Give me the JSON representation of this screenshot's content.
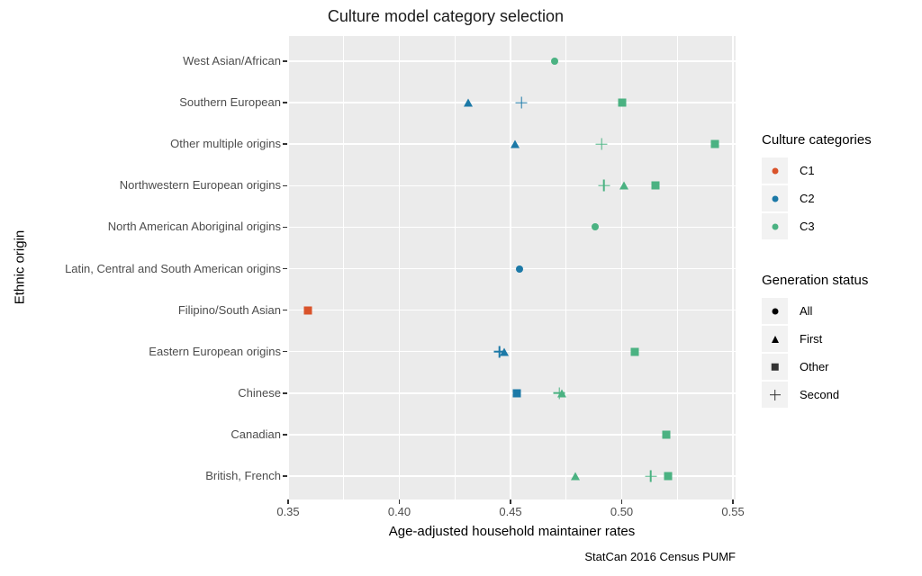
{
  "title": "Culture model category selection",
  "caption": "StatCan 2016 Census PUMF",
  "chart_data": {
    "type": "scatter",
    "title": "Culture model category selection",
    "xlabel": "Age-adjusted household maintainer rates",
    "ylabel": "Ethnic origin",
    "caption": "StatCan 2016 Census PUMF",
    "xlim": [
      0.35,
      0.5512
    ],
    "x_ticks": [
      0.35,
      0.4,
      0.45,
      0.5,
      0.55
    ],
    "x_tick_labels": [
      "0.35",
      "0.40",
      "0.45",
      "0.50",
      "0.55"
    ],
    "x_minor_ticks": [
      0.375,
      0.425,
      0.475,
      0.525
    ],
    "grid": "major-and-minor-x, major-y, white on gray panel",
    "legend_position": "right",
    "categories": [
      "West Asian/African",
      "Southern European",
      "Other multiple origins",
      "Northwestern European origins",
      "North American Aboriginal origins",
      "Latin, Central and South American origins",
      "Filipino/South Asian",
      "Eastern European origins",
      "Chinese",
      "Canadian",
      "British, French"
    ],
    "colors": {
      "C1": "#D9532B",
      "C2": "#1C79A7",
      "C3": "#4BB282"
    },
    "shapes": {
      "All": "circle",
      "First": "triangle",
      "Other": "square",
      "Second": "plus"
    },
    "points": [
      {
        "category": "West Asian/African",
        "culture": "C3",
        "generation": "All",
        "x": 0.47
      },
      {
        "category": "Southern European",
        "culture": "C2",
        "generation": "First",
        "x": 0.431
      },
      {
        "category": "Southern European",
        "culture": "C2",
        "generation": "Second",
        "x": 0.455
      },
      {
        "category": "Southern European",
        "culture": "C3",
        "generation": "Other",
        "x": 0.5
      },
      {
        "category": "Other multiple origins",
        "culture": "C2",
        "generation": "First",
        "x": 0.452
      },
      {
        "category": "Other multiple origins",
        "culture": "C3",
        "generation": "Second",
        "x": 0.491
      },
      {
        "category": "Other multiple origins",
        "culture": "C3",
        "generation": "Other",
        "x": 0.542
      },
      {
        "category": "Northwestern European origins",
        "culture": "C3",
        "generation": "Second",
        "x": 0.492
      },
      {
        "category": "Northwestern European origins",
        "culture": "C3",
        "generation": "First",
        "x": 0.501
      },
      {
        "category": "Northwestern European origins",
        "culture": "C3",
        "generation": "Other",
        "x": 0.515
      },
      {
        "category": "North American Aboriginal origins",
        "culture": "C3",
        "generation": "All",
        "x": 0.488
      },
      {
        "category": "Latin, Central and South American origins",
        "culture": "C2",
        "generation": "All",
        "x": 0.454
      },
      {
        "category": "Filipino/South Asian",
        "culture": "C1",
        "generation": "Other",
        "x": 0.359
      },
      {
        "category": "Eastern European origins",
        "culture": "C2",
        "generation": "Second",
        "x": 0.445
      },
      {
        "category": "Eastern European origins",
        "culture": "C2",
        "generation": "First",
        "x": 0.447
      },
      {
        "category": "Eastern European origins",
        "culture": "C3",
        "generation": "Other",
        "x": 0.506
      },
      {
        "category": "Chinese",
        "culture": "C2",
        "generation": "Other",
        "x": 0.453
      },
      {
        "category": "Chinese",
        "culture": "C3",
        "generation": "Second",
        "x": 0.472
      },
      {
        "category": "Chinese",
        "culture": "C3",
        "generation": "First",
        "x": 0.473
      },
      {
        "category": "Canadian",
        "culture": "C3",
        "generation": "Other",
        "x": 0.52
      },
      {
        "category": "British, French",
        "culture": "C3",
        "generation": "First",
        "x": 0.479
      },
      {
        "category": "British, French",
        "culture": "C3",
        "generation": "Second",
        "x": 0.513
      },
      {
        "category": "British, French",
        "culture": "C3",
        "generation": "Other",
        "x": 0.521
      }
    ],
    "legends": [
      {
        "title": "Culture categories",
        "items": [
          {
            "label": "C1",
            "shape": "circle",
            "color": "#D9532B"
          },
          {
            "label": "C2",
            "shape": "circle",
            "color": "#1C79A7"
          },
          {
            "label": "C3",
            "shape": "circle",
            "color": "#4BB282"
          }
        ]
      },
      {
        "title": "Generation status",
        "items": [
          {
            "label": "All",
            "shape": "circle",
            "color": "#000000"
          },
          {
            "label": "First",
            "shape": "triangle",
            "color": "#000000"
          },
          {
            "label": "Other",
            "shape": "square",
            "color": "#333333"
          },
          {
            "label": "Second",
            "shape": "plus",
            "color": "#333333"
          }
        ]
      }
    ]
  }
}
